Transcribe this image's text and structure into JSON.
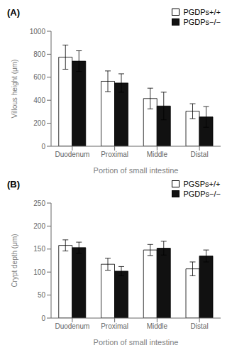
{
  "chart_data": [
    {
      "type": "bar",
      "title": "(A)",
      "y_label": "Villous height (μm)",
      "x_label": "Portion of small intestine",
      "categories": [
        "Duodenum",
        "Proximal",
        "Middle",
        "Distal"
      ],
      "series": [
        {
          "name": "PGDPs+/+",
          "color": "#FFFFFF",
          "values": [
            775,
            565,
            415,
            305
          ],
          "errors": [
            105,
            90,
            90,
            65
          ]
        },
        {
          "name": "PGDPs−/−",
          "color": "#111111",
          "values": [
            740,
            550,
            350,
            255
          ],
          "errors": [
            90,
            80,
            120,
            90
          ]
        }
      ],
      "ylim": [
        0,
        1000
      ],
      "yticks": [
        0,
        200,
        400,
        600,
        800,
        1000
      ],
      "grid": false,
      "legend": "upper right"
    },
    {
      "type": "bar",
      "title": "(B)",
      "y_label": "Crypt depth (μm)",
      "x_label": "Portion of small intestine",
      "categories": [
        "Duodenum",
        "Proximal",
        "Middle",
        "Distal"
      ],
      "series": [
        {
          "name": "PGSPs+/+",
          "color": "#FFFFFF",
          "values": [
            158,
            117,
            148,
            107
          ],
          "errors": [
            12,
            13,
            12,
            15
          ]
        },
        {
          "name": "PGDPs−/−",
          "color": "#111111",
          "values": [
            153,
            102,
            152,
            135
          ],
          "errors": [
            12,
            10,
            15,
            13
          ]
        }
      ],
      "ylim": [
        0,
        250
      ],
      "yticks": [
        0,
        50,
        100,
        150,
        200,
        250
      ],
      "grid": false,
      "legend": "upper right"
    }
  ]
}
